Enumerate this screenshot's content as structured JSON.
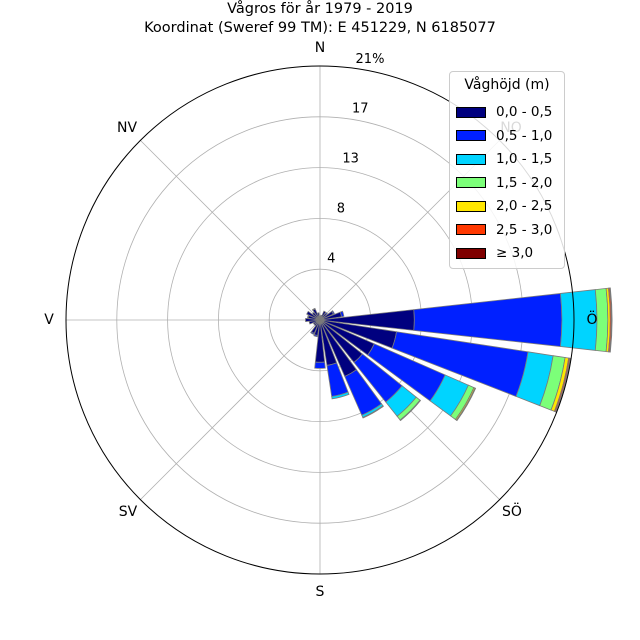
{
  "title": {
    "line1": "Vågros för år 1979 - 2019",
    "line2": "Koordinat (Sweref 99 TM): E 451229, N 6185077"
  },
  "directions": {
    "n": "N",
    "ne": "NO",
    "e": "Ö",
    "se": "SÖ",
    "s": "S",
    "sw": "SV",
    "w": "V",
    "nw": "NV"
  },
  "legend_title": "Våghöjd (m)",
  "chart_data": {
    "type": "polar-stacked-bar",
    "radial_max": 21,
    "radial_ticks": [
      "4",
      "8",
      "13",
      "17",
      "21%"
    ],
    "radial_tick_values": [
      4.2,
      8.4,
      12.6,
      16.8,
      21
    ],
    "sector_width_deg": 15,
    "categories": [
      "0,0 - 0,5",
      "0,5 - 1,0",
      "1,0 - 1,5",
      "1,5 - 2,0",
      "2,0 - 2,5",
      "2,5 - 3,0",
      "≥ 3,0"
    ],
    "colors": [
      "#00007f",
      "#0020ff",
      "#00d4ff",
      "#7cff79",
      "#ffe600",
      "#ff3800",
      "#7f0000"
    ],
    "sectors": [
      {
        "direction_deg": 0,
        "values": [
          0.3,
          0,
          0,
          0,
          0,
          0,
          0
        ]
      },
      {
        "direction_deg": 15,
        "values": [
          0.4,
          0,
          0,
          0,
          0,
          0,
          0
        ]
      },
      {
        "direction_deg": 30,
        "values": [
          0.8,
          0,
          0,
          0,
          0,
          0,
          0
        ]
      },
      {
        "direction_deg": 45,
        "values": [
          0.7,
          0.1,
          0,
          0,
          0,
          0,
          0
        ]
      },
      {
        "direction_deg": 60,
        "values": [
          1.2,
          0.1,
          0,
          0,
          0,
          0,
          0
        ]
      },
      {
        "direction_deg": 75,
        "values": [
          1.8,
          0.2,
          0,
          0,
          0,
          0,
          0
        ]
      },
      {
        "direction_deg": 90,
        "values": [
          7.8,
          12.2,
          2.9,
          0.9,
          0.2,
          0.1,
          0.05
        ]
      },
      {
        "direction_deg": 105,
        "values": [
          6.4,
          11.0,
          2.1,
          1.0,
          0.3,
          0.1,
          0.05
        ]
      },
      {
        "direction_deg": 120,
        "values": [
          4.9,
          6.4,
          2.1,
          0.5,
          0.1,
          0.05,
          0
        ]
      },
      {
        "direction_deg": 135,
        "values": [
          4.5,
          4.2,
          1.5,
          0.4,
          0.05,
          0,
          0
        ]
      },
      {
        "direction_deg": 150,
        "values": [
          5.1,
          3.5,
          0.2,
          0.05,
          0,
          0,
          0
        ]
      },
      {
        "direction_deg": 165,
        "values": [
          3.8,
          2.6,
          0.2,
          0,
          0,
          0,
          0
        ]
      },
      {
        "direction_deg": 180,
        "values": [
          3.5,
          0.5,
          0,
          0,
          0,
          0,
          0
        ]
      },
      {
        "direction_deg": 195,
        "values": [
          1.3,
          0.1,
          0,
          0,
          0,
          0,
          0
        ]
      },
      {
        "direction_deg": 210,
        "values": [
          1.2,
          0.1,
          0,
          0,
          0,
          0,
          0
        ]
      },
      {
        "direction_deg": 225,
        "values": [
          0.6,
          0,
          0,
          0,
          0,
          0,
          0
        ]
      },
      {
        "direction_deg": 240,
        "values": [
          0.6,
          0,
          0,
          0,
          0,
          0,
          0
        ]
      },
      {
        "direction_deg": 255,
        "values": [
          0.9,
          0,
          0,
          0,
          0,
          0,
          0
        ]
      },
      {
        "direction_deg": 270,
        "values": [
          1.2,
          0,
          0,
          0,
          0,
          0,
          0
        ]
      },
      {
        "direction_deg": 285,
        "values": [
          1.0,
          0.05,
          0,
          0,
          0,
          0,
          0
        ]
      },
      {
        "direction_deg": 300,
        "values": [
          1.2,
          0,
          0,
          0,
          0,
          0,
          0
        ]
      },
      {
        "direction_deg": 315,
        "values": [
          0.8,
          0,
          0,
          0,
          0,
          0,
          0
        ]
      },
      {
        "direction_deg": 330,
        "values": [
          1.0,
          0.05,
          0,
          0,
          0,
          0,
          0
        ]
      },
      {
        "direction_deg": 345,
        "values": [
          0.6,
          0,
          0,
          0,
          0,
          0,
          0
        ]
      }
    ]
  }
}
